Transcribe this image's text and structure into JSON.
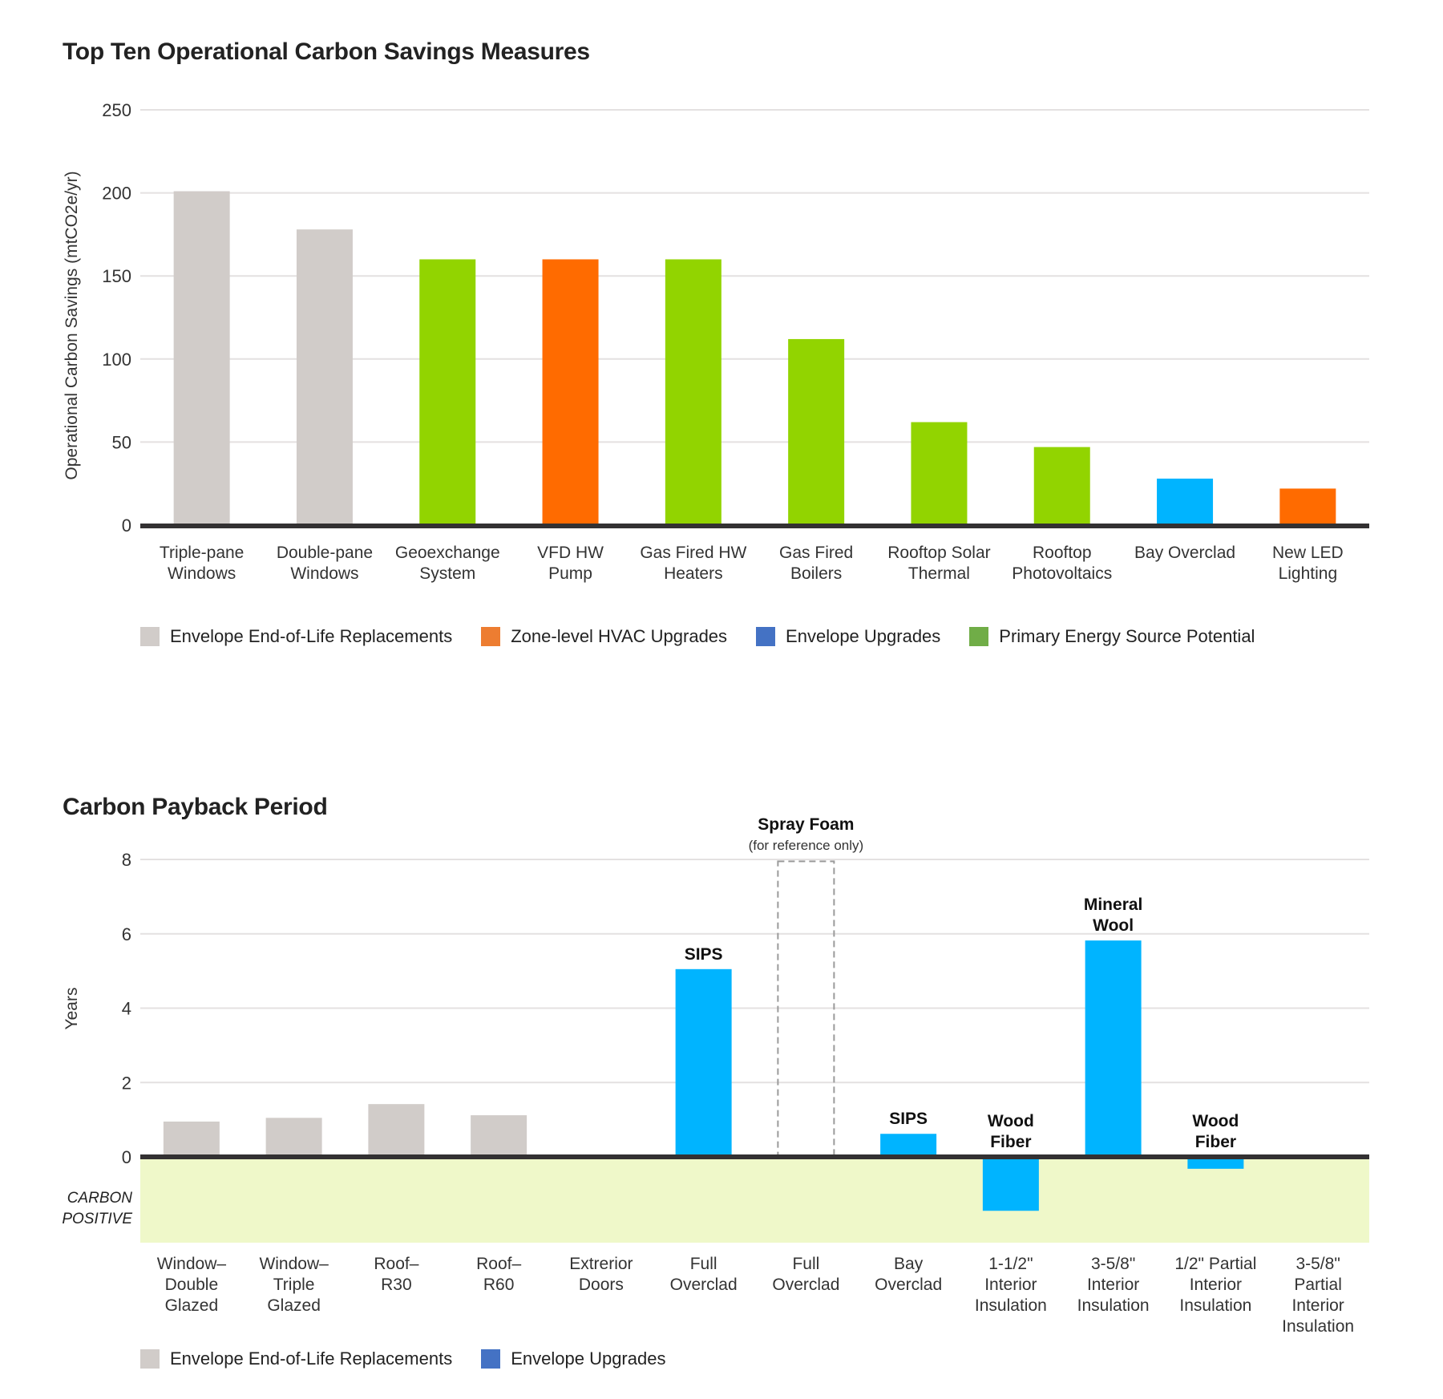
{
  "chart_data": [
    {
      "type": "bar",
      "title": "Top Ten Operational Carbon Savings Measures",
      "xlabel": "",
      "ylabel": "Operational Carbon Savings (mtCO2e/yr)",
      "ylim": [
        0,
        250
      ],
      "yticks": [
        0,
        50,
        100,
        150,
        200,
        250
      ],
      "grid": true,
      "legend_position": "bottom",
      "categories": [
        "Triple-pane\nWindows",
        "Double-pane\nWindows",
        "Geoexchange\nSystem",
        "VFD HW\nPump",
        "Gas Fired HW\nHeaters",
        "Gas Fired\nBoilers",
        "Rooftop Solar\nThermal",
        "Rooftop\nPhotovoltaics",
        "Bay Overclad",
        "New LED\nLighting"
      ],
      "values": [
        201,
        178,
        160,
        160,
        160,
        112,
        62,
        47,
        28,
        22
      ],
      "bar_groups": [
        "Envelope End-of-Life Replacements",
        "Envelope End-of-Life Replacements",
        "Primary Energy Source Potential",
        "Zone-level HVAC Upgrades",
        "Primary Energy Source Potential",
        "Primary Energy Source Potential",
        "Primary Energy Source Potential",
        "Primary Energy Source Potential",
        "Envelope Upgrades",
        "Zone-level HVAC Upgrades"
      ],
      "bar_colors": [
        "#d1ccc9",
        "#d1ccc9",
        "#92d400",
        "#ff6b00",
        "#92d400",
        "#92d400",
        "#92d400",
        "#92d400",
        "#00b4ff",
        "#ff6b00"
      ],
      "legend": [
        {
          "label": "Envelope End-of-Life Replacements",
          "color": "#d1ccc9"
        },
        {
          "label": "Zone-level HVAC Upgrades",
          "color": "#ed7d31"
        },
        {
          "label": "Envelope Upgrades",
          "color": "#4472c4"
        },
        {
          "label": "Primary Energy Source Potential",
          "color": "#70ad47"
        }
      ]
    },
    {
      "type": "bar",
      "title": "Carbon Payback Period",
      "xlabel": "",
      "ylabel": "Years",
      "ylim": [
        -2.3,
        8
      ],
      "yticks": [
        0,
        2,
        4,
        6,
        8
      ],
      "grid": true,
      "legend_position": "bottom",
      "negative_region_label": "CARBON\nPOSITIVE",
      "negative_region_color": "#eff8c9",
      "categories": [
        "Window–\nDouble\nGlazed",
        "Window–\nTriple\nGlazed",
        "Roof–\nR30",
        "Roof–\nR60",
        "Extrerior\nDoors",
        "Full\nOverclad",
        "Full\nOverclad",
        "Bay\nOverclad",
        "1-1/2\"\nInterior\nInsulation",
        "3-5/8\"\nInterior\nInsulation",
        "1/2\" Partial\nInterior\nInsulation",
        "3-5/8\"\nPartial\nInterior\nInsulation"
      ],
      "values": [
        0.95,
        1.05,
        1.42,
        1.12,
        0,
        5.05,
        7.95,
        0.62,
        -1.45,
        5.82,
        -0.32,
        0
      ],
      "bar_styles": [
        "solid",
        "solid",
        "solid",
        "solid",
        "none",
        "solid",
        "dashed",
        "solid",
        "solid",
        "solid",
        "solid",
        "none"
      ],
      "bar_colors": [
        "#d1ccc9",
        "#d1ccc9",
        "#d1ccc9",
        "#d1ccc9",
        "#d1ccc9",
        "#00b4ff",
        "#9a9a9a",
        "#00b4ff",
        "#00b4ff",
        "#00b4ff",
        "#00b4ff",
        "#00b4ff"
      ],
      "bar_annotations": [
        "",
        "",
        "",
        "",
        "",
        "SIPS",
        "",
        "SIPS",
        "Wood\nFiber",
        "Mineral\nWool",
        "Wood\nFiber",
        ""
      ],
      "reference_annotation": {
        "index": 6,
        "title": "Spray Foam",
        "subtitle": "(for reference only)"
      },
      "legend": [
        {
          "label": "Envelope End-of-Life Replacements",
          "color": "#d1ccc9"
        },
        {
          "label": "Envelope Upgrades",
          "color": "#4472c4"
        }
      ]
    }
  ]
}
